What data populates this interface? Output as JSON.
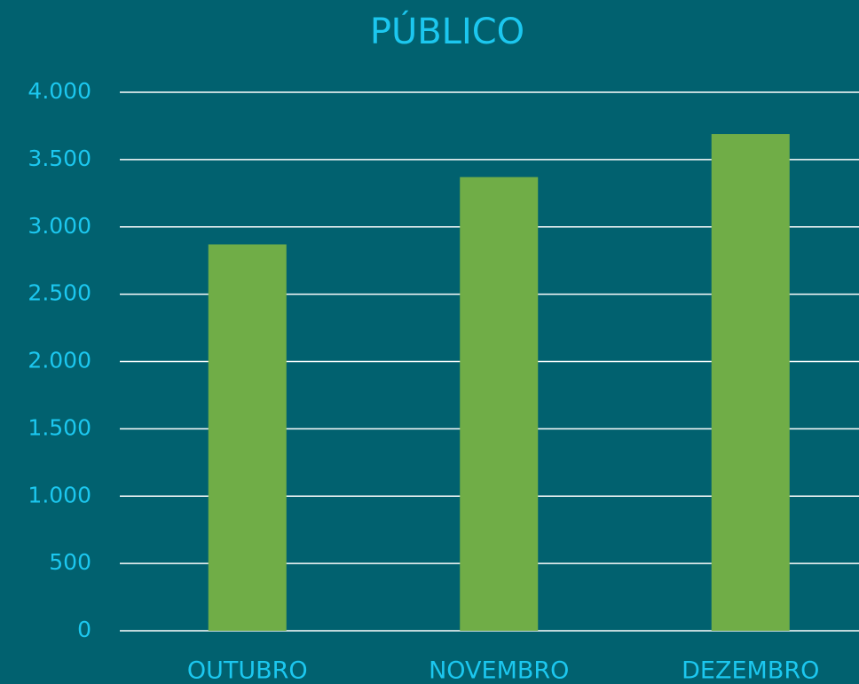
{
  "chart_data": {
    "type": "bar",
    "title": "PÚBLICO",
    "categories": [
      "OUTUBRO",
      "NOVEMBRO",
      "DEZEMBRO"
    ],
    "values": [
      2870,
      3370,
      3690
    ],
    "color": "#70ad47",
    "ylim": [
      0,
      4000
    ],
    "yticks": [
      0,
      500,
      {
        "value": 1000,
        "label": "1.000"
      },
      {
        "value": 1500,
        "label": "1.500"
      },
      {
        "value": 2000,
        "label": "2.000"
      },
      {
        "value": 2500,
        "label": "2.500"
      },
      {
        "value": 3000,
        "label": "3.000"
      },
      {
        "value": 3500,
        "label": "3.500"
      },
      {
        "value": 4000,
        "label": "4.000"
      }
    ],
    "grid": true
  }
}
